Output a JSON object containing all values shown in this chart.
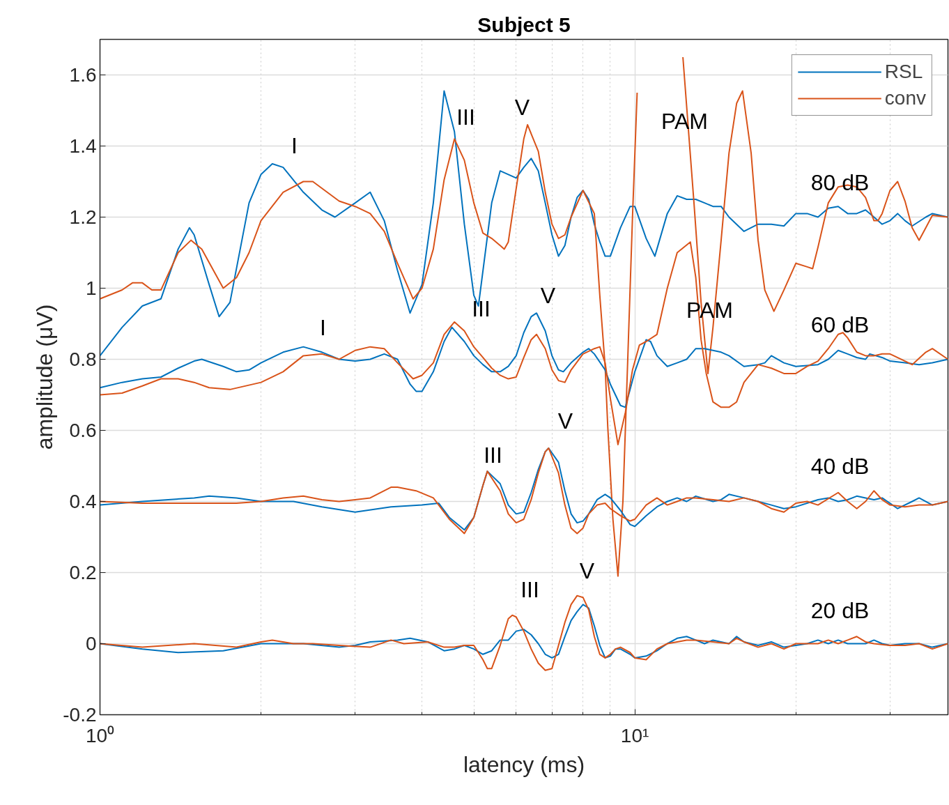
{
  "chart_data": {
    "type": "line",
    "title": "Subject 5",
    "xlabel": "latency (ms)",
    "ylabel": "amplitude (μV)",
    "log": "x",
    "grid": true,
    "legend": "top right",
    "marker": "none",
    "line_style": "solid",
    "xlim": [
      1,
      38.5
    ],
    "ylim": [
      -0.2,
      1.7
    ],
    "xticks": [
      {
        "value": 1,
        "label": "10⁰"
      },
      {
        "value": 2,
        "label": null
      },
      {
        "value": 3,
        "label": null
      },
      {
        "value": 4,
        "label": null
      },
      {
        "value": 5,
        "label": null
      },
      {
        "value": 6,
        "label": null
      },
      {
        "value": 7,
        "label": null
      },
      {
        "value": 8,
        "label": null
      },
      {
        "value": 9,
        "label": null
      },
      {
        "value": 10,
        "label": "10¹"
      },
      {
        "value": 20,
        "label": null
      },
      {
        "value": 30,
        "label": null
      }
    ],
    "yticks": [
      -0.2,
      0,
      0.2,
      0.4,
      0.6,
      0.8,
      1,
      1.2,
      1.4,
      1.6
    ],
    "series": [
      {
        "name": "RSL",
        "color": "#0072bd",
        "x": [
          1,
          1.1,
          1.2,
          1.3,
          1.4,
          1.47,
          1.5,
          1.6,
          1.67,
          1.75,
          1.9,
          2,
          2.1,
          2.2,
          2.4,
          2.6,
          2.75,
          3,
          3.2,
          3.4,
          3.6,
          3.8,
          4,
          4.2,
          4.4,
          4.6,
          4.8,
          5,
          5.1,
          5.4,
          5.6,
          5.8,
          6,
          6.2,
          6.4,
          6.6,
          6.8,
          7,
          7.2,
          7.4,
          7.6,
          7.8,
          8,
          8.2,
          8.4,
          8.6,
          8.8,
          9,
          9.4,
          9.8,
          10,
          10.5,
          10.9,
          11.5,
          12,
          12.5,
          13,
          13.5,
          14,
          14.5,
          15,
          16,
          17,
          18,
          19,
          20,
          21,
          22,
          23,
          24,
          25,
          26,
          27,
          28,
          29,
          30,
          31,
          32,
          33,
          35,
          36,
          38.5
        ],
        "values": [
          0.81,
          0.89,
          0.95,
          0.97,
          1.11,
          1.17,
          1.15,
          1.01,
          0.92,
          0.96,
          1.24,
          1.32,
          1.35,
          1.34,
          1.27,
          1.22,
          1.2,
          1.24,
          1.27,
          1.19,
          1.05,
          0.93,
          1.01,
          1.24,
          1.555,
          1.44,
          1.18,
          0.98,
          0.95,
          1.24,
          1.33,
          1.32,
          1.31,
          1.34,
          1.365,
          1.33,
          1.24,
          1.15,
          1.09,
          1.12,
          1.2,
          1.255,
          1.275,
          1.25,
          1.18,
          1.13,
          1.09,
          1.09,
          1.17,
          1.23,
          1.23,
          1.14,
          1.09,
          1.21,
          1.26,
          1.25,
          1.25,
          1.24,
          1.23,
          1.23,
          1.2,
          1.16,
          1.18,
          1.18,
          1.175,
          1.21,
          1.21,
          1.2,
          1.225,
          1.23,
          1.21,
          1.21,
          1.22,
          1.2,
          1.18,
          1.19,
          1.21,
          1.19,
          1.175,
          1.2,
          1.21,
          1.2
        ]
      },
      {
        "name": "conv",
        "color": "#d95319",
        "x": [
          1,
          1.1,
          1.15,
          1.2,
          1.25,
          1.3,
          1.4,
          1.48,
          1.55,
          1.7,
          1.8,
          1.9,
          2,
          2.2,
          2.4,
          2.5,
          2.8,
          3,
          3.2,
          3.4,
          3.6,
          3.85,
          4,
          4.2,
          4.4,
          4.6,
          4.8,
          5,
          5.2,
          5.4,
          5.6,
          5.7,
          5.8,
          6,
          6.2,
          6.3,
          6.6,
          6.8,
          7,
          7.2,
          7.4,
          7.6,
          8,
          8.4,
          8.6,
          8.8,
          8.9,
          9.1,
          9.3,
          9.5,
          9.7,
          9.9,
          10.1,
          11,
          12.3,
          12.9,
          13.3,
          13.7,
          14,
          14.5,
          15,
          15.5,
          15.9,
          16.5,
          17,
          17.5,
          18.2,
          19,
          20,
          21,
          21.5,
          22,
          23,
          24,
          25,
          26,
          27,
          28,
          28.5,
          29,
          30,
          31,
          32,
          33,
          34,
          35,
          36,
          38.5
        ],
        "values": [
          0.97,
          0.995,
          1.015,
          1.015,
          0.995,
          0.995,
          1.1,
          1.135,
          1.11,
          1.0,
          1.03,
          1.1,
          1.19,
          1.27,
          1.3,
          1.3,
          1.245,
          1.23,
          1.21,
          1.16,
          1.07,
          0.97,
          1.0,
          1.11,
          1.305,
          1.42,
          1.36,
          1.24,
          1.155,
          1.14,
          1.12,
          1.11,
          1.13,
          1.28,
          1.42,
          1.46,
          1.385,
          1.27,
          1.18,
          1.14,
          1.15,
          1.2,
          1.275,
          1.21,
          0.98,
          0.78,
          0.61,
          0.35,
          0.19,
          0.4,
          0.8,
          1.2,
          1.55,
          null,
          1.65,
          1.24,
          0.96,
          0.76,
          0.89,
          1.135,
          1.38,
          1.52,
          1.555,
          1.38,
          1.135,
          0.995,
          0.935,
          0.995,
          1.07,
          1.06,
          1.055,
          1.115,
          1.24,
          1.285,
          1.29,
          1.285,
          1.255,
          1.19,
          1.19,
          1.21,
          1.275,
          1.3,
          1.245,
          1.17,
          1.135,
          1.17,
          1.205,
          1.2
        ]
      },
      {
        "color": "#0072bd",
        "x": [
          1,
          1.1,
          1.2,
          1.3,
          1.4,
          1.5,
          1.55,
          1.7,
          1.8,
          1.9,
          2,
          2.2,
          2.4,
          2.6,
          2.8,
          3,
          3.2,
          3.4,
          3.6,
          3.8,
          3.9,
          4,
          4.2,
          4.4,
          4.55,
          4.8,
          5,
          5.2,
          5.4,
          5.6,
          5.8,
          6,
          6.2,
          6.4,
          6.55,
          6.8,
          7,
          7.2,
          7.35,
          7.6,
          8,
          8.2,
          8.4,
          8.8,
          9,
          9.4,
          9.6,
          10,
          10.5,
          10.7,
          11,
          11.5,
          12,
          12.5,
          13,
          13.5,
          14,
          14.5,
          15,
          16,
          17,
          17.5,
          18,
          19,
          20,
          22,
          23,
          24,
          25,
          26,
          27,
          27.5,
          29,
          30,
          32,
          34,
          36,
          38.5
        ],
        "values": [
          0.72,
          0.735,
          0.745,
          0.75,
          0.775,
          0.795,
          0.8,
          0.78,
          0.765,
          0.77,
          0.79,
          0.82,
          0.835,
          0.82,
          0.8,
          0.795,
          0.8,
          0.815,
          0.8,
          0.73,
          0.71,
          0.71,
          0.765,
          0.85,
          0.89,
          0.85,
          0.81,
          0.785,
          0.765,
          0.765,
          0.78,
          0.81,
          0.875,
          0.92,
          0.93,
          0.88,
          0.81,
          0.77,
          0.765,
          0.79,
          0.82,
          0.83,
          0.815,
          0.77,
          0.73,
          0.67,
          0.665,
          0.765,
          0.855,
          0.85,
          0.81,
          0.78,
          0.79,
          0.8,
          0.83,
          0.83,
          0.825,
          0.82,
          0.81,
          0.78,
          0.785,
          0.79,
          0.81,
          0.79,
          0.78,
          0.785,
          0.8,
          0.825,
          0.815,
          0.805,
          0.8,
          0.815,
          0.805,
          0.795,
          0.79,
          0.785,
          0.79,
          0.8
        ]
      },
      {
        "color": "#d95319",
        "x": [
          1,
          1.1,
          1.2,
          1.3,
          1.4,
          1.5,
          1.6,
          1.75,
          2,
          2.2,
          2.4,
          2.6,
          2.8,
          3,
          3.2,
          3.4,
          3.6,
          3.85,
          4,
          4.2,
          4.4,
          4.6,
          4.8,
          5,
          5.2,
          5.4,
          5.6,
          5.8,
          6,
          6.2,
          6.4,
          6.55,
          6.8,
          7,
          7.2,
          7.4,
          7.6,
          8,
          8.4,
          8.6,
          8.8,
          9,
          9.3,
          9.6,
          9.9,
          10.2,
          10.5,
          11,
          11.5,
          12,
          12.7,
          13,
          13.3,
          13.6,
          14,
          14.5,
          15,
          15.5,
          16,
          17,
          18,
          19,
          20,
          21,
          22,
          23,
          24,
          24.5,
          25,
          26,
          27,
          28,
          29,
          30,
          32,
          33,
          35,
          36,
          38.5
        ],
        "values": [
          0.7,
          0.705,
          0.725,
          0.745,
          0.745,
          0.735,
          0.72,
          0.715,
          0.735,
          0.765,
          0.81,
          0.815,
          0.8,
          0.825,
          0.835,
          0.83,
          0.79,
          0.745,
          0.755,
          0.79,
          0.87,
          0.905,
          0.88,
          0.835,
          0.805,
          0.775,
          0.755,
          0.745,
          0.75,
          0.805,
          0.855,
          0.87,
          0.83,
          0.77,
          0.74,
          0.735,
          0.77,
          0.815,
          0.83,
          0.835,
          0.79,
          0.69,
          0.56,
          0.65,
          0.77,
          0.84,
          0.85,
          0.87,
          1.0,
          1.1,
          1.13,
          1.03,
          0.855,
          0.76,
          0.68,
          0.665,
          0.665,
          0.68,
          0.735,
          0.785,
          0.775,
          0.76,
          0.76,
          0.78,
          0.795,
          0.83,
          0.87,
          0.875,
          0.86,
          0.82,
          0.81,
          0.81,
          0.815,
          0.815,
          0.795,
          0.785,
          0.82,
          0.83,
          0.8
        ]
      },
      {
        "color": "#0072bd",
        "x": [
          1,
          1.2,
          1.5,
          1.6,
          1.8,
          2,
          2.3,
          2.6,
          3,
          3.5,
          4,
          4.3,
          4.5,
          4.8,
          5,
          5.2,
          5.3,
          5.6,
          5.8,
          6,
          6.2,
          6.4,
          6.6,
          6.8,
          6.9,
          7.2,
          7.4,
          7.6,
          7.8,
          8,
          8.2,
          8.5,
          8.8,
          9,
          9.4,
          9.8,
          10,
          10.5,
          11,
          11.5,
          12,
          12.5,
          13,
          14,
          14.5,
          15,
          16,
          17,
          18,
          19,
          20,
          22,
          23,
          24,
          25,
          26,
          27,
          28,
          29,
          30,
          31,
          33,
          34,
          36,
          38.5
        ],
        "values": [
          0.39,
          0.4,
          0.41,
          0.415,
          0.41,
          0.4,
          0.4,
          0.385,
          0.37,
          0.385,
          0.39,
          0.395,
          0.355,
          0.32,
          0.355,
          0.445,
          0.485,
          0.45,
          0.39,
          0.365,
          0.37,
          0.425,
          0.49,
          0.54,
          0.55,
          0.51,
          0.43,
          0.365,
          0.34,
          0.345,
          0.365,
          0.405,
          0.42,
          0.41,
          0.375,
          0.335,
          0.33,
          0.36,
          0.385,
          0.4,
          0.41,
          0.4,
          0.415,
          0.4,
          0.405,
          0.42,
          0.41,
          0.4,
          0.39,
          0.38,
          0.385,
          0.405,
          0.41,
          0.4,
          0.405,
          0.415,
          0.41,
          0.405,
          0.41,
          0.395,
          0.38,
          0.4,
          0.41,
          0.39,
          0.4
        ]
      },
      {
        "color": "#d95319",
        "x": [
          1,
          1.2,
          1.5,
          1.8,
          2,
          2.2,
          2.4,
          2.6,
          2.8,
          3,
          3.2,
          3.5,
          3.6,
          3.9,
          4.2,
          4.5,
          4.8,
          5,
          5.2,
          5.3,
          5.6,
          5.8,
          6,
          6.2,
          6.4,
          6.6,
          6.8,
          6.9,
          7.2,
          7.4,
          7.6,
          7.8,
          8,
          8.2,
          8.5,
          8.8,
          9,
          9.4,
          9.8,
          10,
          10.5,
          11,
          11.5,
          12,
          12.5,
          13,
          14,
          15,
          16,
          17,
          18,
          19,
          20,
          21,
          22,
          24,
          25,
          26,
          27,
          28,
          29,
          30,
          32,
          34,
          36,
          38.5
        ],
        "values": [
          0.4,
          0.395,
          0.395,
          0.395,
          0.4,
          0.41,
          0.415,
          0.405,
          0.4,
          0.405,
          0.41,
          0.44,
          0.44,
          0.43,
          0.41,
          0.35,
          0.31,
          0.355,
          0.445,
          0.485,
          0.43,
          0.365,
          0.34,
          0.35,
          0.405,
          0.48,
          0.54,
          0.55,
          0.48,
          0.39,
          0.325,
          0.31,
          0.325,
          0.365,
          0.39,
          0.395,
          0.38,
          0.36,
          0.345,
          0.35,
          0.39,
          0.41,
          0.39,
          0.4,
          0.41,
          0.41,
          0.405,
          0.4,
          0.41,
          0.4,
          0.38,
          0.37,
          0.395,
          0.4,
          0.39,
          0.425,
          0.4,
          0.38,
          0.4,
          0.43,
          0.405,
          0.39,
          0.385,
          0.39,
          0.39,
          0.4
        ]
      },
      {
        "color": "#0072bd",
        "x": [
          1,
          1.2,
          1.4,
          1.7,
          2,
          2.4,
          2.8,
          3,
          3.2,
          3.6,
          3.8,
          4.1,
          4.4,
          4.6,
          4.8,
          5,
          5.2,
          5.4,
          5.6,
          5.8,
          6,
          6.2,
          6.4,
          6.6,
          6.8,
          7,
          7.2,
          7.4,
          7.6,
          7.8,
          8,
          8.2,
          8.4,
          8.6,
          8.8,
          9,
          9.2,
          9.4,
          9.8,
          10,
          10.5,
          11,
          11.5,
          12,
          12.5,
          13,
          13.5,
          14,
          15,
          15.5,
          16,
          17,
          18,
          19,
          20,
          21,
          22,
          23,
          24,
          25,
          26,
          27,
          28,
          29,
          30,
          32,
          34,
          36,
          38.5
        ],
        "values": [
          0,
          -0.015,
          -0.025,
          -0.02,
          0,
          0,
          -0.01,
          -0.005,
          0.005,
          0.01,
          0.015,
          0.005,
          -0.02,
          -0.015,
          -0.005,
          -0.015,
          -0.03,
          -0.02,
          0.01,
          0.01,
          0.035,
          0.04,
          0.025,
          0,
          -0.03,
          -0.04,
          -0.03,
          0.02,
          0.065,
          0.09,
          0.11,
          0.1,
          0.05,
          -0.005,
          -0.04,
          -0.035,
          -0.015,
          -0.015,
          -0.03,
          -0.04,
          -0.035,
          -0.02,
          0,
          0.015,
          0.02,
          0.01,
          0,
          0.01,
          0,
          0.02,
          0.005,
          -0.005,
          0.005,
          -0.01,
          -0.005,
          0,
          0.01,
          0,
          0.01,
          0,
          0,
          0,
          0.01,
          0,
          -0.005,
          0,
          0,
          -0.01,
          0
        ]
      },
      {
        "color": "#d95319",
        "x": [
          1,
          1.2,
          1.5,
          1.8,
          2,
          2.1,
          2.3,
          2.5,
          2.8,
          3.2,
          3.5,
          3.7,
          4.1,
          4.4,
          4.6,
          4.8,
          5,
          5.2,
          5.3,
          5.4,
          5.6,
          5.8,
          5.9,
          6,
          6.2,
          6.4,
          6.6,
          6.8,
          7,
          7.2,
          7.4,
          7.6,
          7.8,
          8,
          8.2,
          8.4,
          8.6,
          8.8,
          9,
          9.2,
          9.4,
          9.8,
          10,
          10.5,
          11,
          11.5,
          12,
          12.5,
          13,
          14,
          15,
          15.5,
          16,
          17,
          18,
          19,
          20,
          21,
          22,
          23,
          24,
          25,
          26,
          27,
          28,
          30,
          32,
          34,
          36,
          38.5
        ],
        "values": [
          0,
          -0.01,
          0,
          -0.01,
          0.005,
          0.01,
          0,
          0,
          -0.005,
          -0.01,
          0.01,
          0,
          0.005,
          -0.01,
          -0.01,
          -0.005,
          -0.005,
          -0.045,
          -0.07,
          -0.07,
          -0.005,
          0.07,
          0.08,
          0.075,
          0.035,
          -0.015,
          -0.055,
          -0.075,
          -0.07,
          -0.005,
          0.06,
          0.11,
          0.135,
          0.13,
          0.095,
          0.02,
          -0.03,
          -0.04,
          -0.03,
          -0.015,
          -0.01,
          -0.025,
          -0.04,
          -0.045,
          -0.015,
          0,
          0.005,
          0.01,
          0.01,
          0.005,
          0,
          0.015,
          0.005,
          -0.01,
          0,
          -0.015,
          0,
          0,
          0,
          0.01,
          0,
          0.01,
          0.02,
          0.005,
          0,
          -0.005,
          -0.005,
          0,
          -0.015,
          0
        ]
      }
    ],
    "annotations": [
      "I",
      "III",
      "V",
      "PAM",
      "80 dB",
      "I",
      "III",
      "V",
      "PAM",
      "60 dB",
      "III",
      "V",
      "40 dB",
      "III",
      "V",
      "20 dB"
    ]
  }
}
